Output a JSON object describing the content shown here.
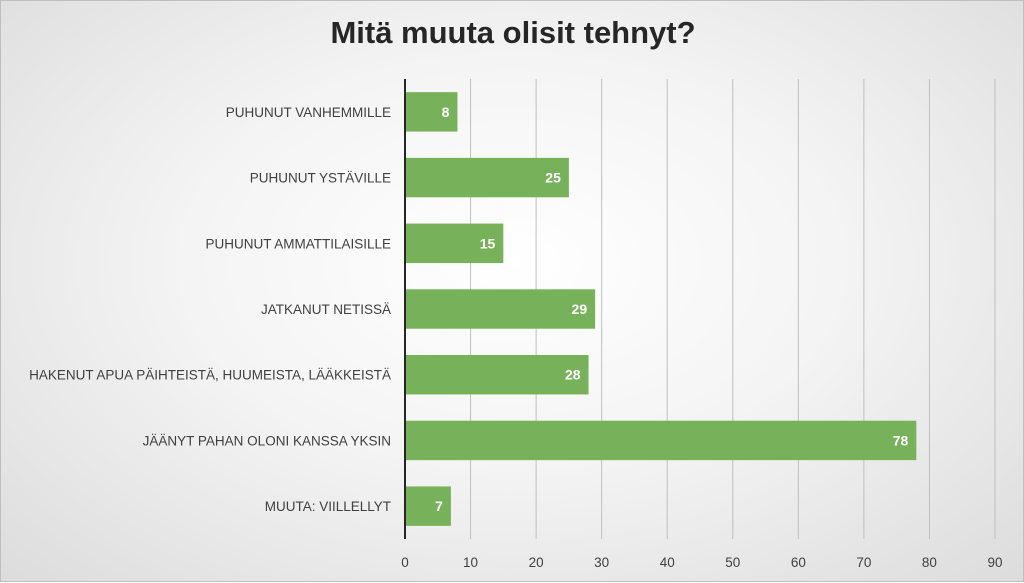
{
  "chart_data": {
    "type": "bar",
    "orientation": "horizontal",
    "title": "Mitä muuta olisit tehnyt?",
    "categories": [
      "PUHUNUT VANHEMMILLE",
      "PUHUNUT YSTÄVILLE",
      "PUHUNUT AMMATTILAISILLE",
      "JATKANUT NETISSÄ",
      "HAKENUT APUA PÄIHTEISTÄ, HUUMEISTA, LÄÄKKEISTÄ",
      "JÄÄNYT PAHAN OLONI KANSSA YKSIN",
      "MUUTA: VIILLELLYT"
    ],
    "values": [
      8,
      25,
      15,
      29,
      28,
      78,
      7
    ],
    "value_labels": [
      "8",
      "25",
      "15",
      "29",
      "28",
      "78",
      "7"
    ],
    "xlim": [
      0,
      90
    ],
    "xticks": [
      "0",
      "10",
      "20",
      "30",
      "40",
      "50",
      "60",
      "70",
      "80",
      "90"
    ],
    "grid": "vertical",
    "legend": "none",
    "bar_color": "#77b25b",
    "gridline_color": "#bfbfbf",
    "axis_color": "#262626"
  }
}
